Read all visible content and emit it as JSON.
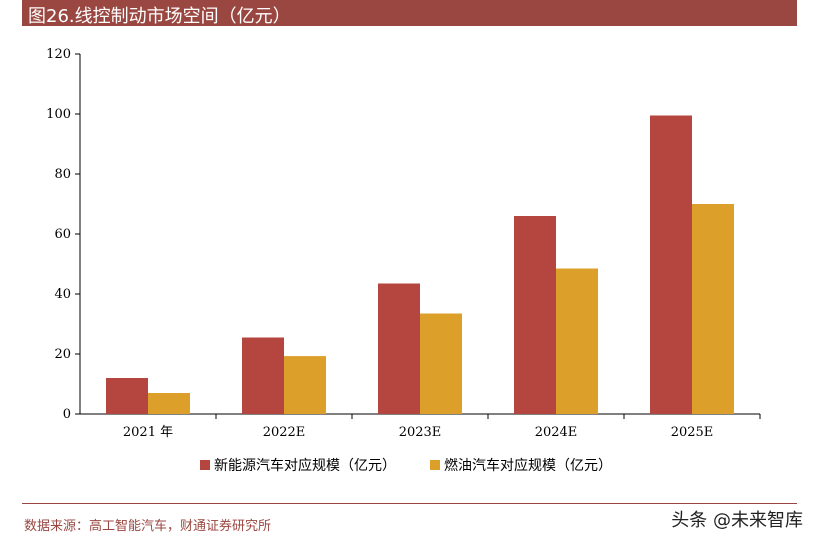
{
  "title": "图26.线控制动市场空间（亿元）",
  "source": "数据来源：高工智能汽车，财通证券研究所",
  "watermark": "头条 @未来智库",
  "colors": {
    "ev": "#b5463f",
    "ice": "#dc9f2a",
    "accent": "#9a4741"
  },
  "chart_data": {
    "type": "bar",
    "categories": [
      "2021 年",
      "2022E",
      "2023E",
      "2024E",
      "2025E"
    ],
    "series": [
      {
        "name": "新能源汽车对应规模（亿元）",
        "values": [
          12,
          25.5,
          43.5,
          66,
          99.5
        ]
      },
      {
        "name": "燃油汽车对应规模（亿元）",
        "values": [
          7,
          19.3,
          33.5,
          48.5,
          70
        ]
      }
    ],
    "ylim": [
      0,
      120
    ],
    "yticks": [
      0,
      20,
      40,
      60,
      80,
      100,
      120
    ],
    "legend_position": "bottom",
    "grid": false
  }
}
